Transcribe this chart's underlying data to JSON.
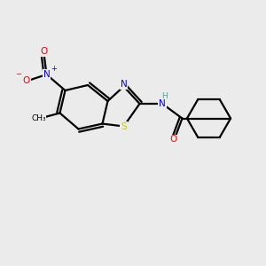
{
  "background_color": "#ebebeb",
  "bond_color": "#000000",
  "bond_width": 1.6,
  "atom_colors": {
    "C": "#000000",
    "N": "#0000ff",
    "O": "#ff0000",
    "S": "#cccc00",
    "H": "#5f9ea0"
  }
}
